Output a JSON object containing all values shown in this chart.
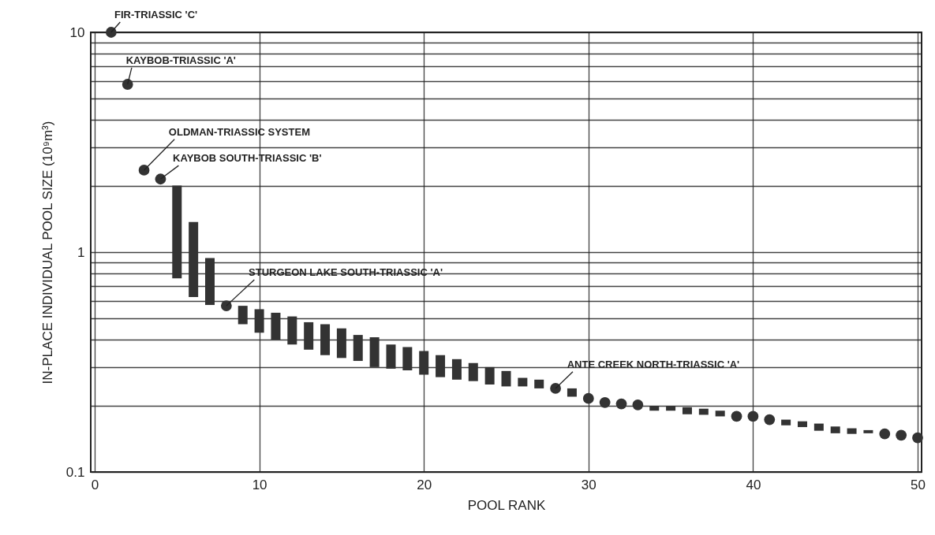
{
  "chart_data": {
    "type": "bar",
    "xlabel": "POOL RANK",
    "ylabel": "IN-PLACE INDIVIDUAL POOL SIZE (10⁹m³)",
    "xlim": [
      0,
      50
    ],
    "xticks": [
      0,
      10,
      20,
      30,
      40,
      50
    ],
    "ylim": [
      0.1,
      10
    ],
    "yticks": [
      0.1,
      {
        "value": 0.2,
        "label": null
      },
      {
        "value": 0.3,
        "label": null
      },
      {
        "value": 0.4,
        "label": null
      },
      {
        "value": 0.5,
        "label": null
      },
      {
        "value": 0.6,
        "label": null
      },
      {
        "value": 0.7,
        "label": null
      },
      {
        "value": 0.8,
        "label": null
      },
      {
        "value": 0.9,
        "label": null
      },
      1,
      {
        "value": 2,
        "label": null
      },
      {
        "value": 3,
        "label": null
      },
      {
        "value": 4,
        "label": null
      },
      {
        "value": 5,
        "label": null
      },
      {
        "value": 6,
        "label": null
      },
      {
        "value": 7,
        "label": null
      },
      {
        "value": 8,
        "label": null
      },
      {
        "value": 9,
        "label": null
      },
      10
    ],
    "log": true,
    "grid": true,
    "series": [
      {
        "type": "bar",
        "color": "#333333",
        "x": [
          5,
          6,
          7,
          9,
          10,
          11,
          12,
          13,
          14,
          15,
          16,
          17,
          18,
          19,
          20,
          21,
          22,
          23,
          24,
          25,
          26,
          27,
          29,
          34,
          35,
          36,
          37,
          38,
          42,
          43,
          44,
          45,
          46,
          47
        ],
        "base": [
          0.76,
          0.625,
          0.575,
          0.47,
          0.43,
          0.4,
          0.38,
          0.36,
          0.34,
          0.33,
          0.32,
          0.3,
          0.295,
          0.29,
          0.277,
          0.27,
          0.263,
          0.259,
          0.25,
          0.245,
          0.245,
          0.24,
          0.22,
          0.19,
          0.19,
          0.183,
          0.182,
          0.179,
          0.163,
          0.16,
          0.154,
          0.15,
          0.149,
          0.15
        ],
        "values": [
          1.25,
          0.745,
          0.365,
          0.1,
          0.12,
          0.13,
          0.13,
          0.12,
          0.13,
          0.12,
          0.1,
          0.11,
          0.085,
          0.08,
          0.078,
          0.07,
          0.063,
          0.054,
          0.05,
          0.043,
          0.023,
          0.023,
          0.02,
          0.01,
          0.01,
          0.014,
          0.012,
          0.011,
          0.01,
          0.01,
          0.012,
          0.011,
          0.009,
          0.005
        ]
      },
      {
        "type": "scatter",
        "color": "#333333",
        "marker": "circle",
        "x": [
          1,
          2,
          3,
          4,
          8,
          28,
          30,
          31,
          32,
          33,
          39,
          40,
          41,
          48,
          49,
          50
        ],
        "values": [
          10,
          5.8,
          2.36,
          2.15,
          0.57,
          0.24,
          0.216,
          0.207,
          0.204,
          0.202,
          0.179,
          0.179,
          0.173,
          0.149,
          0.147,
          0.143
        ]
      }
    ],
    "annotations": [
      {
        "text": "FIR-TRIASSIC 'C'",
        "x": 1,
        "y": 10
      },
      {
        "text": "KAYBOB-TRIASSIC 'A'",
        "x": 2,
        "y": 5.8
      },
      {
        "text": "OLDMAN-TRIASSIC SYSTEM",
        "x": 3,
        "y": 2.36
      },
      {
        "text": "KAYBOB SOUTH-TRIASSIC 'B'",
        "x": 4,
        "y": 2.15
      },
      {
        "text": "STURGEON LAKE SOUTH-TRIASSIC 'A'",
        "x": 8,
        "y": 0.57
      },
      {
        "text": "ANTE CREEK NORTH-TRIASSIC 'A'",
        "x": 28,
        "y": 0.24
      }
    ]
  }
}
